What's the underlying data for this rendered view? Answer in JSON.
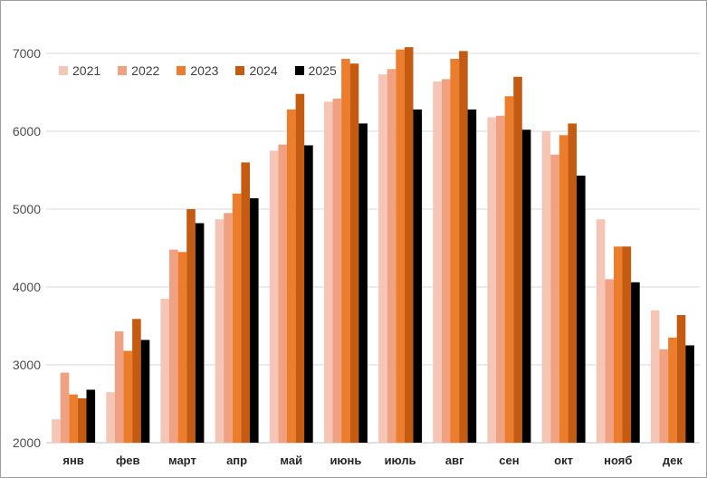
{
  "chart_data": {
    "type": "bar",
    "title": "",
    "categories": [
      "янв",
      "фев",
      "март",
      "апр",
      "май",
      "июнь",
      "июль",
      "авг",
      "сен",
      "окт",
      "нояб",
      "дек"
    ],
    "series": [
      {
        "name": "2021",
        "color": "#F5C6B5",
        "values": [
          2300,
          2650,
          3850,
          4870,
          5750,
          6380,
          6730,
          6640,
          6180,
          6000,
          4870,
          3700
        ]
      },
      {
        "name": "2022",
        "color": "#F0A181",
        "values": [
          2900,
          3430,
          4480,
          4950,
          5830,
          6420,
          6800,
          6670,
          6200,
          5700,
          4100,
          3200
        ]
      },
      {
        "name": "2023",
        "color": "#EC7D2D",
        "values": [
          2620,
          3180,
          4450,
          5200,
          6280,
          6930,
          7050,
          6930,
          6450,
          5950,
          4520,
          3350
        ]
      },
      {
        "name": "2024",
        "color": "#C45B11",
        "values": [
          2570,
          3590,
          5000,
          5600,
          6480,
          6870,
          7080,
          7030,
          6700,
          6100,
          4520,
          3640
        ]
      },
      {
        "name": "2025",
        "color": "#000000",
        "values": [
          2680,
          3320,
          4820,
          5140,
          5820,
          6100,
          6280,
          6280,
          6020,
          5430,
          4060,
          3250
        ]
      }
    ],
    "yticks": [
      "2000",
      "3000",
      "4000",
      "5000",
      "6000",
      "7000"
    ],
    "ylim": [
      2000,
      7000
    ],
    "xlabel": "",
    "ylabel": "",
    "grid": "horizontal",
    "legend_position": "top-left",
    "gridline_color": "#d9d9d9",
    "axis_line_color": "#bfbfbf"
  }
}
